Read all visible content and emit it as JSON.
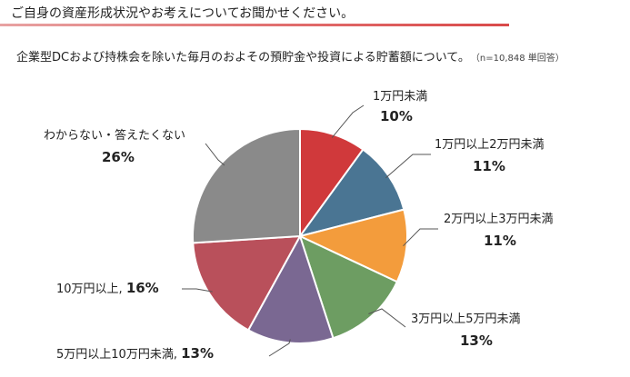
{
  "question": {
    "title": "ご自身の資産形成状況やお考えについてお聞かせください。",
    "underline_color": "#d94a4a"
  },
  "sub_question": {
    "text": "企業型DCおよび持株会を除いた毎月のおよその預貯金や投資による貯蓄額について。",
    "note": "（n=10,848 単回答）"
  },
  "chart_data": {
    "type": "pie",
    "title": "",
    "start": "12 o'clock, clockwise",
    "slices": [
      {
        "label": "1万円未満",
        "value": 10,
        "display": "10%",
        "color": "#d0393b"
      },
      {
        "label": "1万円以上2万円未満",
        "value": 11,
        "display": "11%",
        "color": "#4a7593"
      },
      {
        "label": "2万円以上3万円未満",
        "value": 11,
        "display": "11%",
        "color": "#f39c3c"
      },
      {
        "label": "3万円以上5万円未満",
        "value": 13,
        "display": "13%",
        "color": "#6d9d62"
      },
      {
        "label": "5万円以上10万円未満",
        "value": 13,
        "display": "13%",
        "color": "#7a6892"
      },
      {
        "label": "10万円以上",
        "value": 16,
        "display": "16%",
        "color": "#b9505b"
      },
      {
        "label": "わからない・答えたくない",
        "value": 26,
        "display": "26%",
        "color": "#8a8a8a"
      }
    ]
  }
}
